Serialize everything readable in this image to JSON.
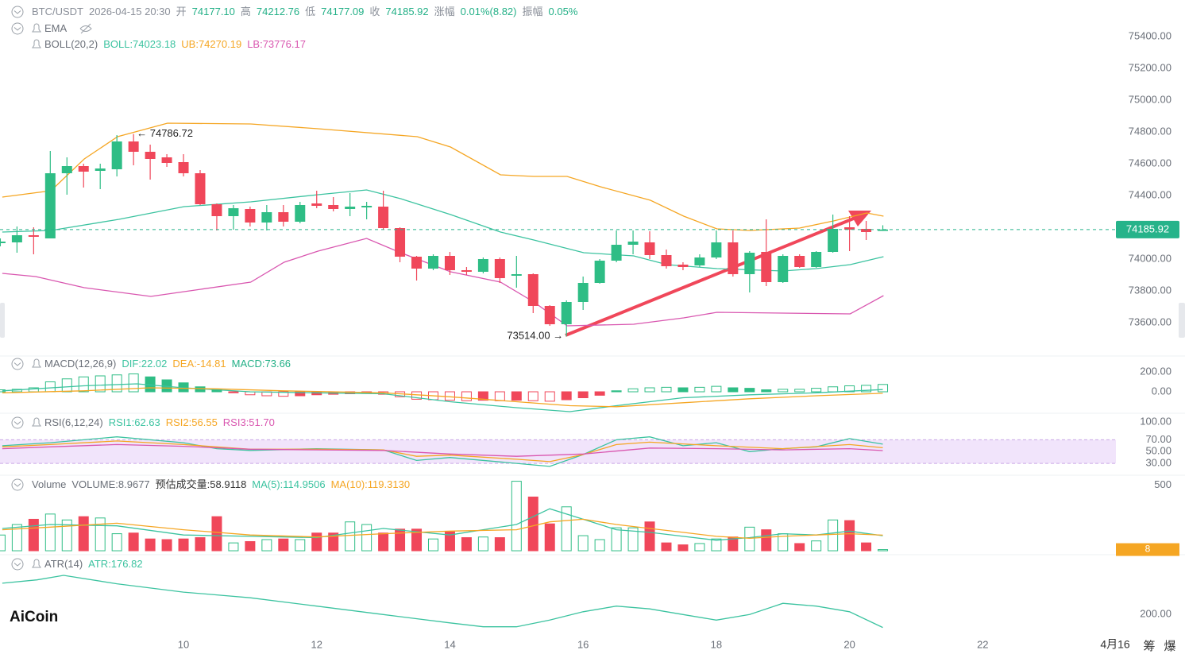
{
  "chart_data": [
    {
      "type": "candlestick",
      "legend": [
        [
          {
            "text": "BTC/USDT",
            "color": "#8a8f99"
          },
          {
            "text": "2026-04-15 20:30",
            "color": "#8a8f99"
          },
          {
            "text": "开",
            "color": "#8a8f99"
          },
          {
            "text": "74177.10",
            "color": "#23b087"
          },
          {
            "text": "高",
            "color": "#8a8f99"
          },
          {
            "text": "74212.76",
            "color": "#23b087"
          },
          {
            "text": "低",
            "color": "#8a8f99"
          },
          {
            "text": "74177.09",
            "color": "#23b087"
          },
          {
            "text": "收",
            "color": "#8a8f99"
          },
          {
            "text": "74185.92",
            "color": "#23b087"
          },
          {
            "text": "涨幅",
            "color": "#8a8f99"
          },
          {
            "text": "0.01%(8.82)",
            "color": "#23b087"
          },
          {
            "text": "振幅",
            "color": "#8a8f99"
          },
          {
            "text": "0.05%",
            "color": "#23b087"
          }
        ],
        [
          {
            "text": "EMA",
            "color": "#6b7079"
          }
        ],
        [
          {
            "text": "BOLL(20,2)",
            "color": "#6b7079"
          },
          {
            "text": "BOLL:74023.18",
            "color": "#3cc3a0"
          },
          {
            "text": "UB:74270.19",
            "color": "#f5a623"
          },
          {
            "text": "LB:73776.17",
            "color": "#d957b0"
          }
        ]
      ],
      "x": [
        7.25,
        7.5,
        7.75,
        8,
        8.25,
        8.5,
        8.75,
        9,
        9.25,
        9.5,
        9.75,
        10,
        10.25,
        10.5,
        10.75,
        11,
        11.25,
        11.5,
        11.75,
        12,
        12.25,
        12.5,
        12.75,
        13,
        13.25,
        13.5,
        13.75,
        14,
        14.25,
        14.5,
        14.75,
        15,
        15.25,
        15.5,
        15.75,
        16,
        16.25,
        16.5,
        16.75,
        17,
        17.25,
        17.5,
        17.75,
        18,
        18.25,
        18.5,
        18.75,
        19,
        19.25,
        19.5,
        19.75,
        20,
        20.25,
        20.5
      ],
      "open": [
        74100,
        74105,
        74150,
        74130,
        74540,
        74585,
        74555,
        74565,
        74740,
        74675,
        74640,
        74610,
        74540,
        74345,
        74270,
        74315,
        74230,
        74295,
        74235,
        74350,
        74340,
        74315,
        74325,
        74330,
        74195,
        74015,
        73940,
        74020,
        73930,
        73920,
        74000,
        73895,
        73905,
        73705,
        73590,
        73730,
        73850,
        73990,
        74090,
        74105,
        74025,
        73965,
        73960,
        74010,
        74105,
        73905,
        74045,
        73855,
        74020,
        73950,
        74045,
        74200,
        74190,
        74177.1
      ],
      "high": [
        74130,
        74205,
        74200,
        74680,
        74640,
        74600,
        74600,
        74780,
        74786.72,
        74720,
        74660,
        74660,
        74560,
        74350,
        74340,
        74330,
        74340,
        74340,
        74360,
        74430,
        74390,
        74415,
        74360,
        74430,
        74200,
        74020,
        74030,
        74045,
        73950,
        74010,
        74010,
        74020,
        73910,
        73710,
        73740,
        73890,
        74000,
        74180,
        74180,
        74175,
        74060,
        73980,
        74030,
        74180,
        74180,
        74050,
        74250,
        74030,
        74030,
        74050,
        74280,
        74270,
        74240,
        74212.76
      ],
      "low": [
        74080,
        74040,
        74030,
        74130,
        74405,
        74450,
        74440,
        74520,
        74590,
        74500,
        74580,
        74520,
        74340,
        74180,
        74185,
        74205,
        74180,
        74205,
        74225,
        74320,
        74300,
        74270,
        74250,
        74185,
        73980,
        73865,
        73930,
        73900,
        73900,
        73910,
        73850,
        73820,
        73660,
        73580,
        73514,
        73680,
        73845,
        73980,
        74030,
        74000,
        73940,
        73930,
        73950,
        74000,
        73890,
        73790,
        73830,
        73850,
        73945,
        73945,
        74040,
        74050,
        74120,
        74177.09
      ],
      "close": [
        74110,
        74150,
        74140,
        74540,
        74585,
        74550,
        74570,
        74740,
        74675,
        74630,
        74605,
        74540,
        74345,
        74270,
        74320,
        74230,
        74295,
        74235,
        74340,
        74335,
        74315,
        74330,
        74335,
        74195,
        74015,
        73940,
        74020,
        73930,
        73920,
        74000,
        73880,
        73905,
        73705,
        73590,
        73730,
        73850,
        73990,
        74090,
        74110,
        74025,
        73955,
        73950,
        74010,
        74105,
        73905,
        74040,
        73855,
        74020,
        73950,
        74045,
        74190,
        74185,
        74170,
        74185.92
      ],
      "up_color": "#2ebd85",
      "down_color": "#f0475a",
      "series": [
        {
          "color": "#3cc3a0",
          "x": [
            7.28,
            8.01,
            9.03,
            10.01,
            11.01,
            12.02,
            12.75,
            13.26,
            14.01,
            14.76,
            15.26,
            16.01,
            16.76,
            17.26,
            18.01,
            19.0,
            19.5,
            20.01,
            20.51
          ],
          "values": [
            74170,
            74180,
            74250,
            74330,
            74360,
            74405,
            74435,
            74380,
            74280,
            74170,
            74120,
            74040,
            74020,
            73965,
            73940,
            73925,
            73940,
            73965,
            74015
          ]
        },
        {
          "color": "#f5a623",
          "x": [
            7.28,
            8.01,
            8.51,
            9.01,
            9.76,
            11.01,
            12.02,
            13.51,
            14.01,
            14.76,
            15.26,
            15.76,
            16.26,
            17.01,
            17.51,
            18.01,
            18.5,
            19.25,
            19.76,
            20.26,
            20.51
          ],
          "values": [
            74390,
            74430,
            74630,
            74770,
            74855,
            74850,
            74820,
            74770,
            74705,
            74530,
            74520,
            74520,
            74455,
            74370,
            74270,
            74190,
            74180,
            74195,
            74240,
            74290,
            74270
          ]
        },
        {
          "color": "#d957b0",
          "x": [
            7.28,
            7.78,
            8.51,
            9.51,
            10.26,
            11.01,
            11.51,
            12.02,
            12.75,
            13.26,
            14.01,
            14.76,
            15.26,
            15.76,
            16.76,
            17.51,
            18.01,
            20.01,
            20.51
          ],
          "values": [
            73910,
            73890,
            73820,
            73765,
            73810,
            73855,
            73980,
            74050,
            74130,
            74040,
            73920,
            73855,
            73730,
            73580,
            73590,
            73630,
            73665,
            73655,
            73770
          ]
        }
      ],
      "high_label": "← 74786.72",
      "low_label": "73514.00 →",
      "xlim": [
        7.245,
        23.94
      ],
      "xticks": [
        10,
        12,
        14,
        16,
        18,
        20,
        22
      ],
      "ylim": [
        73390,
        75630
      ],
      "yticks": [
        {
          "value": 75400,
          "label": "75400.00"
        },
        {
          "value": 75200,
          "label": "75200.00"
        },
        {
          "value": 75000,
          "label": "75000.00"
        },
        {
          "value": 74800,
          "label": "74800.00"
        },
        {
          "value": 74600,
          "label": "74600.00"
        },
        {
          "value": 74400,
          "label": "74400.00"
        },
        {
          "value": 74000,
          "label": "74000.00"
        },
        {
          "value": 73800,
          "label": "73800.00"
        },
        {
          "value": 73600,
          "label": "73600.00"
        }
      ],
      "price_tag_color": "#26b38a"
    },
    {
      "type": "macd",
      "legend": [
        [
          {
            "text": "MACD(12,26,9)",
            "color": "#6b7079"
          },
          {
            "text": "DIF:22.02",
            "color": "#3cc3a0"
          },
          {
            "text": "DEA:-14.81",
            "color": "#f5a623"
          },
          {
            "text": "MACD:73.66",
            "color": "#23b087"
          }
        ]
      ],
      "values": [
        20,
        25,
        40,
        100,
        130,
        150,
        160,
        170,
        180,
        150,
        120,
        90,
        50,
        25,
        -10,
        -30,
        -40,
        -45,
        -40,
        -30,
        -25,
        -20,
        -15,
        -25,
        -50,
        -75,
        -80,
        -85,
        -90,
        -85,
        -90,
        -85,
        -90,
        -95,
        -80,
        -60,
        -35,
        10,
        30,
        40,
        45,
        40,
        45,
        55,
        40,
        35,
        20,
        25,
        25,
        35,
        50,
        60,
        65,
        73.66
      ],
      "series": [
        {
          "color": "#3cc3a0",
          "x": [
            7.28,
            8.5,
            9.3,
            10,
            11,
            12,
            13,
            14,
            15,
            15.8,
            16.5,
            17.5,
            18.5,
            19.5,
            20.5
          ],
          "values": [
            10,
            60,
            80,
            40,
            0,
            -10,
            -20,
            -100,
            -160,
            -200,
            -140,
            -60,
            -30,
            -10,
            22.02
          ]
        },
        {
          "color": "#f5a623",
          "x": [
            7.28,
            8.5,
            9.5,
            10.5,
            11.5,
            13,
            14,
            15,
            15.8,
            16.5,
            17.5,
            18.5,
            19.5,
            20.5
          ],
          "values": [
            -10,
            10,
            40,
            30,
            10,
            -10,
            -50,
            -100,
            -140,
            -150,
            -110,
            -70,
            -40,
            -14.81
          ]
        }
      ],
      "ylim": [
        -216,
        360
      ],
      "yticks": [
        {
          "value": 200,
          "label": "200.00"
        },
        {
          "value": 0,
          "label": "0.00"
        }
      ]
    },
    {
      "type": "rsi",
      "legend": [
        [
          {
            "text": "RSI(6,12,24)",
            "color": "#6b7079"
          },
          {
            "text": "RSI1:62.63",
            "color": "#3cc3a0"
          },
          {
            "text": "RSI2:56.55",
            "color": "#f5a623"
          },
          {
            "text": "RSI3:51.70",
            "color": "#d957b0"
          }
        ]
      ],
      "series": [
        {
          "color": "#3cc3a0",
          "x": [
            7.28,
            8,
            9,
            10,
            10.5,
            11,
            12,
            13,
            13.5,
            14,
            15,
            15.5,
            16,
            16.5,
            17,
            17.5,
            18,
            18.5,
            19,
            19.5,
            20,
            20.5
          ],
          "values": [
            60,
            65,
            75,
            65,
            55,
            52,
            55,
            53,
            35,
            40,
            30,
            25,
            45,
            70,
            75,
            60,
            65,
            50,
            55,
            58,
            72,
            62.63
          ]
        },
        {
          "color": "#f5a623",
          "x": [
            7.28,
            8,
            9,
            10,
            11,
            12,
            13,
            13.5,
            14,
            15,
            15.5,
            16,
            16.5,
            17,
            18,
            19,
            20,
            20.5
          ],
          "values": [
            58,
            62,
            68,
            62,
            54,
            54,
            53,
            42,
            44,
            37,
            33,
            45,
            62,
            66,
            60,
            55,
            62,
            56.55
          ]
        },
        {
          "color": "#d957b0",
          "x": [
            7.28,
            8,
            9,
            10,
            11,
            12,
            13,
            14,
            15,
            16,
            17,
            18,
            19,
            20,
            20.5
          ],
          "values": [
            55,
            58,
            62,
            59,
            54,
            53,
            52,
            46,
            42,
            46,
            56,
            55,
            53,
            55,
            51.7
          ]
        }
      ],
      "band_color": "#f1e4fb",
      "ylim": [
        10,
        115
      ],
      "yticks": [
        {
          "value": 100,
          "label": "100.00"
        },
        {
          "value": 70,
          "label": "70.00"
        },
        {
          "value": 50,
          "label": "50.00"
        },
        {
          "value": 30,
          "label": "30.00"
        }
      ]
    },
    {
      "type": "volume",
      "legend": [
        [
          {
            "text": "Volume",
            "color": "#6b7079"
          },
          {
            "text": "VOLUME:8.9677",
            "color": "#6b7079"
          },
          {
            "text": "预估成交量:58.9118",
            "color": "#333"
          },
          {
            "text": "MA(5):114.9506",
            "color": "#3cc3a0"
          },
          {
            "text": "MA(10):119.3130",
            "color": "#f5a623"
          }
        ]
      ],
      "values": [
        120,
        200,
        240,
        280,
        235,
        260,
        250,
        130,
        135,
        90,
        85,
        90,
        100,
        260,
        60,
        70,
        85,
        90,
        85,
        135,
        135,
        220,
        200,
        135,
        165,
        165,
        90,
        145,
        100,
        105,
        100,
        530,
        410,
        205,
        335,
        115,
        85,
        175,
        175,
        220,
        60,
        45,
        55,
        90,
        105,
        180,
        160,
        130,
        55,
        75,
        235,
        230,
        60,
        8.9677
      ],
      "series": [
        {
          "color": "#3cc3a0",
          "x": [
            7.28,
            8,
            9,
            10,
            11,
            12,
            13,
            14,
            15,
            15.5,
            16,
            16.5,
            17,
            17.5,
            18,
            18.5,
            19,
            19.5,
            20,
            20.5
          ],
          "values": [
            170,
            200,
            190,
            120,
            110,
            100,
            170,
            120,
            200,
            320,
            240,
            160,
            140,
            110,
            80,
            100,
            130,
            120,
            150,
            114.95
          ]
        },
        {
          "color": "#f5a623",
          "x": [
            7.28,
            8,
            9,
            10,
            11,
            12,
            13,
            14,
            15,
            15.5,
            16,
            16.5,
            17,
            17.5,
            18,
            18.5,
            19,
            19.5,
            20,
            20.5
          ],
          "values": [
            160,
            180,
            210,
            160,
            120,
            105,
            130,
            150,
            160,
            220,
            240,
            200,
            170,
            140,
            110,
            95,
            110,
            120,
            130,
            119.31
          ]
        }
      ],
      "tag_label": "8",
      "tag_color": "#f5a623",
      "ylim": [
        -30,
        576
      ],
      "yticks": [
        500
      ]
    },
    {
      "type": "atr",
      "legend": [
        [
          {
            "text": "ATR(14)",
            "color": "#6b7079"
          },
          {
            "text": "ATR:176.82",
            "color": "#3cc3a0"
          }
        ]
      ],
      "series": [
        {
          "color": "#3cc3a0",
          "x": [
            7.28,
            7.8,
            8.2,
            9,
            10,
            10.5,
            11,
            12,
            13,
            14,
            14.5,
            15,
            15.5,
            16,
            16.5,
            17,
            17.5,
            18,
            18.5,
            19,
            19.5,
            20,
            20.5
          ],
          "values": [
            256,
            262,
            270,
            255,
            240,
            235,
            230,
            215,
            200,
            185,
            178,
            178,
            190,
            205,
            215,
            210,
            200,
            190,
            200,
            220,
            215,
            205,
            176.82
          ]
        }
      ],
      "ylim": [
        162,
        307
      ],
      "yticks": [
        {
          "value": 200,
          "label": "200.00"
        }
      ]
    }
  ],
  "x_axis_extra": {
    "crosshair_label": "4月16",
    "tools": [
      "筹",
      "爆"
    ]
  },
  "logo": "AiCoin"
}
